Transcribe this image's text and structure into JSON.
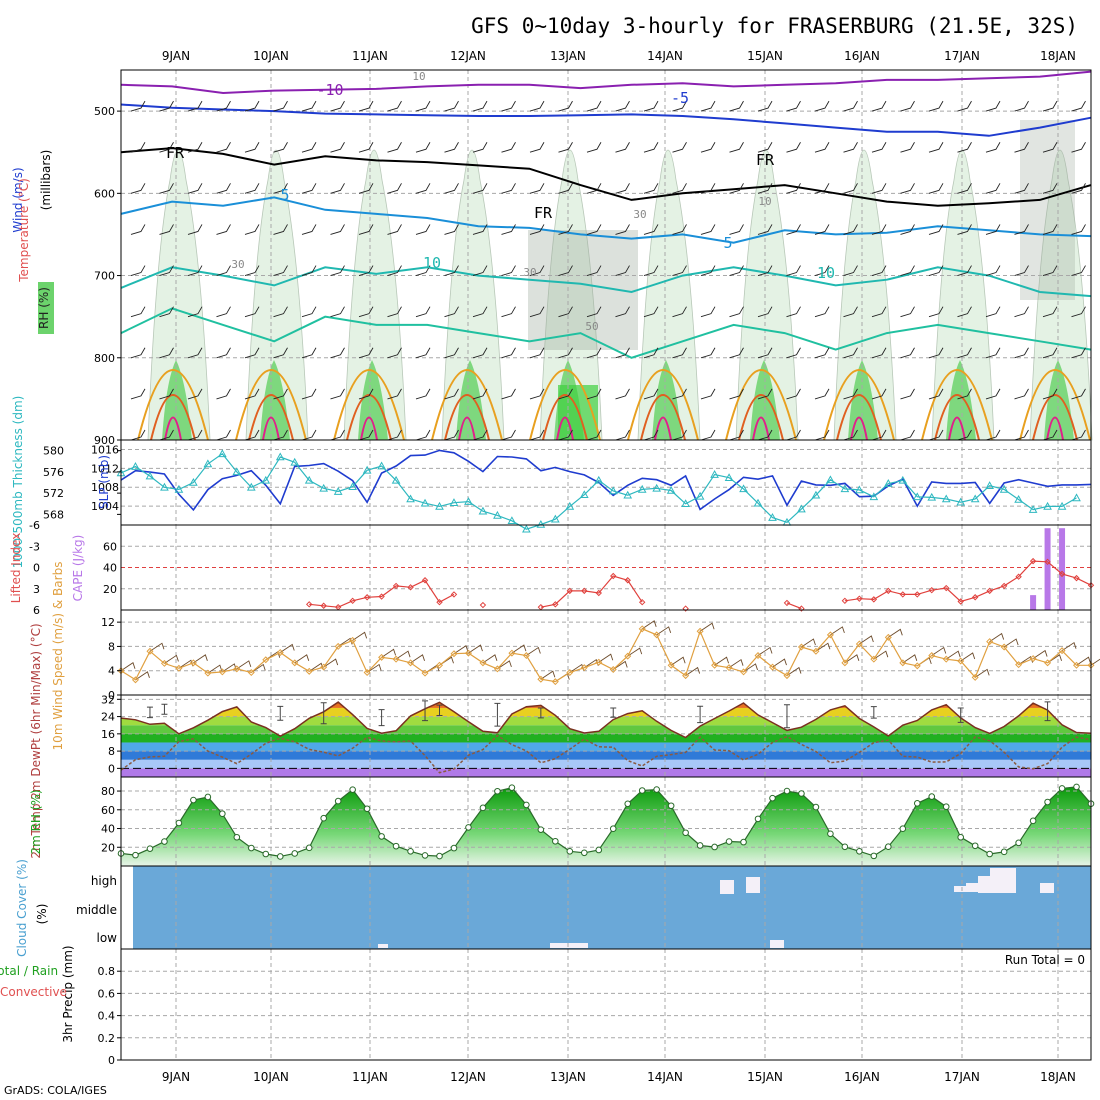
{
  "title": "GFS 0~10day 3-hourly for FRASERBURG (21.5E, 32S)",
  "footer": "GrADS: COLA/IGES",
  "dates": [
    "9JAN",
    "10JAN",
    "11JAN",
    "12JAN",
    "13JAN",
    "14JAN",
    "15JAN",
    "16JAN",
    "17JAN",
    "18JAN"
  ],
  "colors": {
    "grid": "#a8a8a8",
    "rh_green": "#6cd36c",
    "slp": "#1f3ccf",
    "thickness": "#2eb8c0",
    "lifted": "#e0403c",
    "cape": "#b878e8",
    "wind": "#e0a040",
    "cloud_bg": "#6aa8d8"
  },
  "chart_data": [
    {
      "panel": "upper-air",
      "type": "contour",
      "ylabel_parts": [
        "RH (%)",
        "Temperature (°C)",
        "Wind (m/s)"
      ],
      "ylabel2": "(millibars)",
      "yticks": [
        500,
        600,
        700,
        800,
        900
      ],
      "ylim": [
        450,
        900
      ],
      "contour_labels": [
        "-10",
        "-5",
        "5",
        "10",
        "5",
        "10",
        "FR",
        "FR",
        "FR",
        "10",
        "30",
        "30",
        "50",
        "30",
        "10"
      ]
    },
    {
      "panel": "slp-thickness",
      "type": "line",
      "ylabel_left": "1000-500mb Thickness (dm)",
      "ylabel_right": "SLP (mb)",
      "yticks_left": [
        "580",
        "576",
        "572",
        "568"
      ],
      "yticks_right": [
        "1016",
        "1012",
        "1008",
        "1004"
      ],
      "series": [
        {
          "name": "SLP (mb)",
          "ylim": [
            1000,
            1018
          ],
          "values": [
            1009.5,
            1011.5,
            1011.2,
            1010.8,
            1006.5,
            1003.2,
            1007.5,
            1009.8,
            1010.5,
            1011.5,
            1008.4,
            1004.5,
            1012.4,
            1012.6,
            1013,
            1011.4,
            1009.4,
            1004.8,
            1011,
            1012.5,
            1014.7,
            1014.8,
            1015.8,
            1015.3,
            1013.5,
            1011.3,
            1014.5,
            1014.4,
            1014,
            1011.5,
            1012.2,
            1011.3,
            1010.6,
            1009,
            1006.3,
            1008.4,
            1009.9,
            1009.6,
            1008.4,
            1010.4,
            1003.3,
            1005.5,
            1007.5,
            1010.1,
            1009.7,
            1010.4,
            1004.2,
            1009.3,
            1008.5,
            1008.4,
            1008.8,
            1006,
            1006.1,
            1008.3,
            1009.7,
            1004,
            1009.1,
            1008.8,
            1008.8,
            1009,
            1004.6,
            1008.9,
            1009.6,
            1008.9,
            1008.2,
            1008.5,
            1008.5,
            1008.6
          ]
        },
        {
          "name": "1000-500mb Thickness (dm)",
          "ylim": [
            566,
            582
          ],
          "values": [
            575.8,
            577,
            575.2,
            573.1,
            572.7,
            574,
            577.5,
            579.4,
            576,
            573.1,
            574.4,
            578.8,
            577.8,
            574.4,
            572.9,
            572.3,
            573.2,
            576.3,
            577.1,
            574.4,
            570.9,
            570.1,
            569.5,
            570.2,
            570.4,
            568.6,
            567.8,
            566.8,
            565.2,
            566.1,
            567.1,
            569.5,
            571.7,
            574.4,
            572.4,
            571.6,
            572.7,
            572.9,
            572.5,
            570,
            571.4,
            575.5,
            574.9,
            572.8,
            570.1,
            567.4,
            566.5,
            569,
            571.6,
            574.5,
            572.8,
            572.6,
            571.3,
            573.8,
            574.4,
            571.3,
            571.2,
            570.9,
            570.3,
            570.9,
            573.4,
            572.7,
            570.8,
            568.9,
            569.5,
            569.5,
            571.1
          ]
        }
      ]
    },
    {
      "panel": "lifted-cape",
      "type": "line+bar",
      "ylabel_left": "Lifted Index",
      "ylabel_right": "CAPE (J/kg)",
      "yticks_left": [
        "-6",
        "-3",
        "0",
        "3",
        "6"
      ],
      "yticks_right": [
        "60",
        "40",
        "20"
      ],
      "lifted_index_ylim": [
        -6,
        6
      ],
      "lifted_index": [
        null,
        null,
        null,
        null,
        null,
        null,
        null,
        null,
        null,
        null,
        null,
        null,
        null,
        5.2,
        5.4,
        5.6,
        4.7,
        4.2,
        4.1,
        2.6,
        2.8,
        1.8,
        4.9,
        3.8,
        null,
        5.3,
        null,
        null,
        null,
        5.6,
        5.2,
        3.3,
        3.3,
        3.6,
        1.2,
        1.8,
        4.9,
        null,
        null,
        5.8,
        null,
        null,
        null,
        null,
        null,
        null,
        5,
        5.8,
        null,
        null,
        4.7,
        4.4,
        4.5,
        3.3,
        3.8,
        3.8,
        3.2,
        2.9,
        4.8,
        4.2,
        3.3,
        2.6,
        1.3,
        -0.9,
        -0.8,
        0.9,
        1.5,
        2.5
      ],
      "cape_ylim": [
        0,
        80
      ],
      "cape": [
        {
          "x_index": 63,
          "value": 14
        },
        {
          "x_index": 64,
          "value": 77
        },
        {
          "x_index": 65,
          "value": 77
        }
      ]
    },
    {
      "panel": "wind-10m",
      "type": "line",
      "ylabel": "10m Wind Speed (m/s) & Barbs",
      "yticks": [
        "12",
        "8",
        "4",
        "0"
      ],
      "ylim": [
        0,
        14
      ],
      "values": [
        4,
        2.5,
        7.2,
        5.2,
        4.4,
        5.3,
        3.6,
        3.8,
        4.3,
        3.7,
        5.8,
        7,
        5.3,
        3.9,
        4.6,
        8,
        9,
        3.7,
        6.2,
        5.9,
        5.3,
        3.6,
        4.9,
        6.8,
        6.9,
        5.3,
        4.3,
        6.9,
        6.5,
        2.6,
        2.2,
        3.7,
        4.5,
        5.4,
        4.2,
        6.4,
        10.9,
        9.9,
        4.9,
        3.2,
        10.5,
        4.9,
        4.5,
        3.8,
        6.5,
        4.6,
        3.2,
        7.9,
        7.2,
        9.9,
        5.3,
        8.4,
        5.9,
        9.5,
        5.3,
        4.8,
        6.5,
        5.9,
        5.6,
        2.9,
        8.8,
        7.9,
        5,
        6,
        5.3,
        7.3,
        4.9,
        4.9
      ]
    },
    {
      "panel": "temperature-2m",
      "type": "area+line",
      "ylabel": "2m Temp 2m DewPt (6hr Min/Max) (°C)",
      "yticks": [
        "32",
        "24",
        "16",
        "8",
        "0"
      ],
      "ylim": [
        -4,
        34
      ],
      "temperature": [
        23.3,
        22.5,
        20.4,
        20.9,
        16,
        18.8,
        22.3,
        26.3,
        28.5,
        21.5,
        18.9,
        14.9,
        18.4,
        23.2,
        26.2,
        30.7,
        24.9,
        18.5,
        16.3,
        17.4,
        24.3,
        27.6,
        30.6,
        26.2,
        21.6,
        17.2,
        16.5,
        25.2,
        28.6,
        29.2,
        24.6,
        18.4,
        16.4,
        17.2,
        22.6,
        25.4,
        26.7,
        21.8,
        17.6,
        14.3,
        19.6,
        23.1,
        26.6,
        30.3,
        24.8,
        21.2,
        17.6,
        19.1,
        22.7,
        27.1,
        29,
        23.1,
        19.2,
        15,
        20,
        22.2,
        27.1,
        29.5,
        23.4,
        18.9,
        16.2,
        19.4,
        24.3,
        30.2,
        27,
        20.2,
        16.6,
        16.3
      ],
      "dewpoint": [
        -0.8,
        4,
        5.3,
        5.6,
        12.4,
        13.7,
        8,
        5.2,
        2.2,
        6.6,
        11.6,
        14,
        12.3,
        8.8,
        7.5,
        5.8,
        9.3,
        14.4,
        12.7,
        12.3,
        12.7,
        5.9,
        -2,
        -0.3,
        6.1,
        8.7,
        15.2,
        11,
        8.1,
        2.6,
        4.5,
        8.9,
        13.6,
        10,
        9.8,
        3.6,
        1.1,
        5.6,
        6.4,
        7.4,
        14.5,
        8.5,
        8.2,
        3.9,
        6.5,
        12,
        14.7,
        11.1,
        7.8,
        2.6,
        3.4,
        7.4,
        11.9,
        13.1,
        5.6,
        5.2,
        2.9,
        3,
        6.9,
        14.6,
        12.8,
        7.5,
        0.7,
        -0.2,
        2.2,
        9.8,
        14.5,
        13.3
      ],
      "minmax_top": [
        null,
        null,
        28.4,
        29.7,
        null,
        null,
        null,
        null,
        null,
        null,
        null,
        28.7,
        null,
        null,
        30.4,
        null,
        null,
        null,
        27.2,
        null,
        null,
        31.3,
        29.3,
        null,
        null,
        null,
        30.1,
        null,
        null,
        28,
        null,
        null,
        null,
        null,
        28,
        null,
        null,
        null,
        null,
        null,
        28.8,
        null,
        null,
        null,
        null,
        null,
        29.5,
        null,
        null,
        null,
        null,
        null,
        28.6,
        null,
        null,
        null,
        null,
        null,
        28,
        null,
        null,
        null,
        null,
        null,
        30.8,
        null,
        null,
        null
      ],
      "minmax_bottom": [
        null,
        null,
        23.5,
        25.1,
        null,
        null,
        null,
        null,
        null,
        null,
        null,
        22.3,
        null,
        null,
        20.7,
        null,
        null,
        null,
        19.8,
        null,
        null,
        22.1,
        24.5,
        null,
        null,
        null,
        19.6,
        null,
        null,
        23.4,
        null,
        null,
        null,
        null,
        23.7,
        null,
        null,
        null,
        null,
        null,
        21.2,
        null,
        null,
        null,
        null,
        null,
        18.8,
        null,
        null,
        null,
        null,
        null,
        23.3,
        null,
        null,
        null,
        null,
        null,
        21.3,
        null,
        null,
        null,
        null,
        null,
        22.1,
        null,
        null,
        null
      ]
    },
    {
      "panel": "rh-2m",
      "type": "area+scatter",
      "ylabel": "2m RH (%)",
      "yticks": [
        "80",
        "60",
        "40",
        "20"
      ],
      "ylim": [
        0,
        95
      ],
      "values": [
        13.4,
        11.6,
        18.5,
        26.1,
        45.9,
        70.4,
        73.7,
        55.8,
        30.7,
        19.2,
        12.8,
        10.2,
        13.4,
        19.4,
        51,
        69.3,
        81.5,
        61.1,
        31.6,
        21.2,
        15.7,
        11.3,
        10.6,
        19.1,
        41.2,
        62.1,
        79.8,
        83.6,
        65.2,
        38.8,
        26.4,
        15.7,
        14.1,
        17.1,
        39.8,
        66.4,
        80.6,
        81.6,
        64.3,
        35.5,
        21.9,
        20.3,
        26.1,
        25.5,
        50.3,
        72.4,
        80,
        77.4,
        62.9,
        34.4,
        20.5,
        15.7,
        10.8,
        20.6,
        39.8,
        66.9,
        74.1,
        63.3,
        30.7,
        21.6,
        12.8,
        15.1,
        24.7,
        48.2,
        68.3,
        82.8,
        84.4,
        66.5
      ]
    },
    {
      "panel": "cloud-cover",
      "type": "heatmap",
      "ylabel": "Cloud Cover (%)",
      "levels": [
        "high",
        "middle",
        "low"
      ]
    },
    {
      "panel": "precip-3hr",
      "type": "bar",
      "ylabel_parts": [
        "Total / Rain",
        "Convective"
      ],
      "ylabel2": "3hr Precip (mm)",
      "yticks": [
        "0.8",
        "0.6",
        "0.4",
        "0.2",
        "0"
      ],
      "ylim": [
        0,
        1
      ],
      "run_total_label": "Run Total = 0",
      "values": []
    }
  ]
}
